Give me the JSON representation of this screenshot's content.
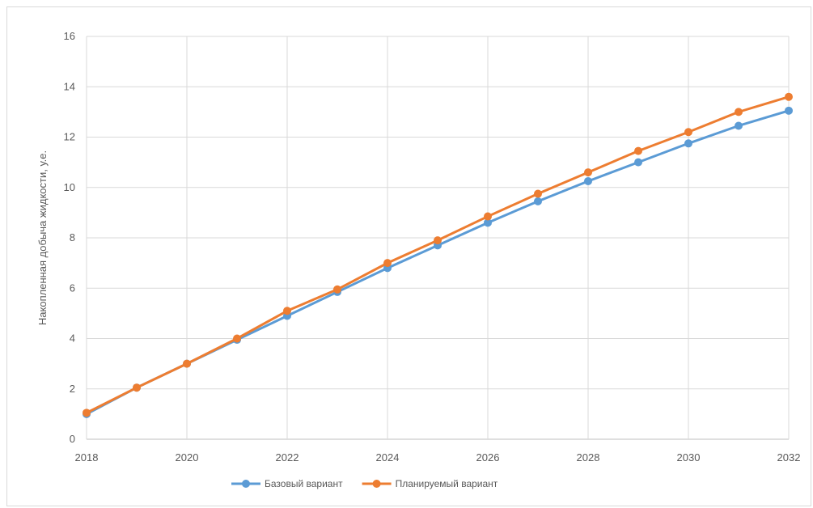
{
  "chart_data": {
    "type": "line",
    "title": "",
    "xlabel": "",
    "ylabel": "Накопленная добыча жидкости, у.е.",
    "x": [
      2018,
      2019,
      2020,
      2021,
      2022,
      2023,
      2024,
      2025,
      2026,
      2027,
      2028,
      2029,
      2030,
      2031,
      2032
    ],
    "x_ticks": [
      "2018",
      "2020",
      "2022",
      "2024",
      "2026",
      "2028",
      "2030",
      "2032"
    ],
    "y_ticks": [
      "0",
      "2",
      "4",
      "6",
      "8",
      "10",
      "12",
      "14",
      "16"
    ],
    "xlim": [
      2018,
      2032
    ],
    "ylim": [
      0,
      16
    ],
    "grid": true,
    "legend_position": "bottom",
    "series": [
      {
        "name": "Базовый вариант",
        "color": "#5b9bd5",
        "values": [
          1.0,
          2.05,
          3.0,
          3.95,
          4.9,
          5.85,
          6.8,
          7.7,
          8.6,
          9.45,
          10.25,
          11.0,
          11.75,
          12.45,
          13.05
        ]
      },
      {
        "name": "Планируемый вариант",
        "color": "#ed7d31",
        "values": [
          1.05,
          2.05,
          3.0,
          4.0,
          5.1,
          5.95,
          7.0,
          7.9,
          8.85,
          9.75,
          10.6,
          11.45,
          12.2,
          13.0,
          13.6
        ]
      }
    ]
  }
}
